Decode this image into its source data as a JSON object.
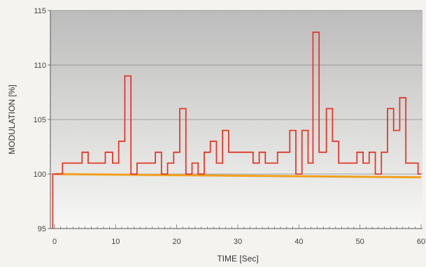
{
  "chart_data": {
    "type": "line",
    "title": "",
    "xlabel": "TIME [Sec]",
    "ylabel": "MODULATION [%]",
    "xlim": [
      0,
      60
    ],
    "ylim": [
      95,
      115
    ],
    "x_ticks": [
      0,
      10,
      20,
      30,
      40,
      50,
      60
    ],
    "y_ticks": [
      95,
      100,
      105,
      110,
      115
    ],
    "grid": "horizontal",
    "colors": {
      "peak_trace": "#e03a2a",
      "reference_line": "#f0a020",
      "plot_top": "#bcbcbc",
      "plot_bottom": "#f7f7f5"
    },
    "series": [
      {
        "kind": "step",
        "points": [
          [
            -0.3,
            95
          ],
          [
            -0.3,
            100
          ],
          [
            1.3,
            100
          ],
          [
            1.3,
            101
          ],
          [
            4.5,
            101
          ],
          [
            4.5,
            102
          ],
          [
            5.5,
            102
          ],
          [
            5.5,
            101
          ],
          [
            8.3,
            101
          ],
          [
            8.3,
            102
          ],
          [
            9.5,
            102
          ],
          [
            9.5,
            101
          ],
          [
            10.5,
            101
          ],
          [
            10.5,
            103
          ],
          [
            11.5,
            103
          ],
          [
            11.5,
            109
          ],
          [
            12.5,
            109
          ],
          [
            12.5,
            100
          ],
          [
            13.5,
            100
          ],
          [
            13.5,
            101
          ],
          [
            16.5,
            101
          ],
          [
            16.5,
            102
          ],
          [
            17.5,
            102
          ],
          [
            17.5,
            100
          ],
          [
            18.5,
            100
          ],
          [
            18.5,
            101
          ],
          [
            19.5,
            101
          ],
          [
            19.5,
            102
          ],
          [
            20.5,
            102
          ],
          [
            20.5,
            106
          ],
          [
            21.5,
            106
          ],
          [
            21.5,
            100
          ],
          [
            22.5,
            100
          ],
          [
            22.5,
            101
          ],
          [
            23.5,
            101
          ],
          [
            23.5,
            100
          ],
          [
            24.5,
            100
          ],
          [
            24.5,
            102
          ],
          [
            25.5,
            102
          ],
          [
            25.5,
            103
          ],
          [
            26.5,
            103
          ],
          [
            26.5,
            101
          ],
          [
            27.5,
            101
          ],
          [
            27.5,
            104
          ],
          [
            28.5,
            104
          ],
          [
            28.5,
            102
          ],
          [
            32.5,
            102
          ],
          [
            32.5,
            101
          ],
          [
            33.5,
            101
          ],
          [
            33.5,
            102
          ],
          [
            34.5,
            102
          ],
          [
            34.5,
            101
          ],
          [
            36.5,
            101
          ],
          [
            36.5,
            102
          ],
          [
            38.5,
            102
          ],
          [
            38.5,
            104
          ],
          [
            39.5,
            104
          ],
          [
            39.5,
            100
          ],
          [
            40.5,
            100
          ],
          [
            40.5,
            104
          ],
          [
            41.5,
            104
          ],
          [
            41.5,
            101
          ],
          [
            42.3,
            101
          ],
          [
            42.3,
            113
          ],
          [
            43.3,
            113
          ],
          [
            43.3,
            102
          ],
          [
            44.5,
            102
          ],
          [
            44.5,
            106
          ],
          [
            45.5,
            106
          ],
          [
            45.5,
            103
          ],
          [
            46.5,
            103
          ],
          [
            46.5,
            101
          ],
          [
            49.5,
            101
          ],
          [
            49.5,
            102
          ],
          [
            50.5,
            102
          ],
          [
            50.5,
            101
          ],
          [
            51.5,
            101
          ],
          [
            51.5,
            102
          ],
          [
            52.5,
            102
          ],
          [
            52.5,
            100
          ],
          [
            53.5,
            100
          ],
          [
            53.5,
            102
          ],
          [
            54.5,
            102
          ],
          [
            54.5,
            106
          ],
          [
            55.5,
            106
          ],
          [
            55.5,
            104
          ],
          [
            56.5,
            104
          ],
          [
            56.5,
            107
          ],
          [
            57.5,
            107
          ],
          [
            57.5,
            101
          ],
          [
            59.5,
            101
          ],
          [
            59.5,
            100
          ],
          [
            60,
            100
          ]
        ]
      },
      {
        "kind": "line",
        "points": [
          [
            0,
            100
          ],
          [
            60,
            99.7
          ]
        ]
      }
    ]
  }
}
